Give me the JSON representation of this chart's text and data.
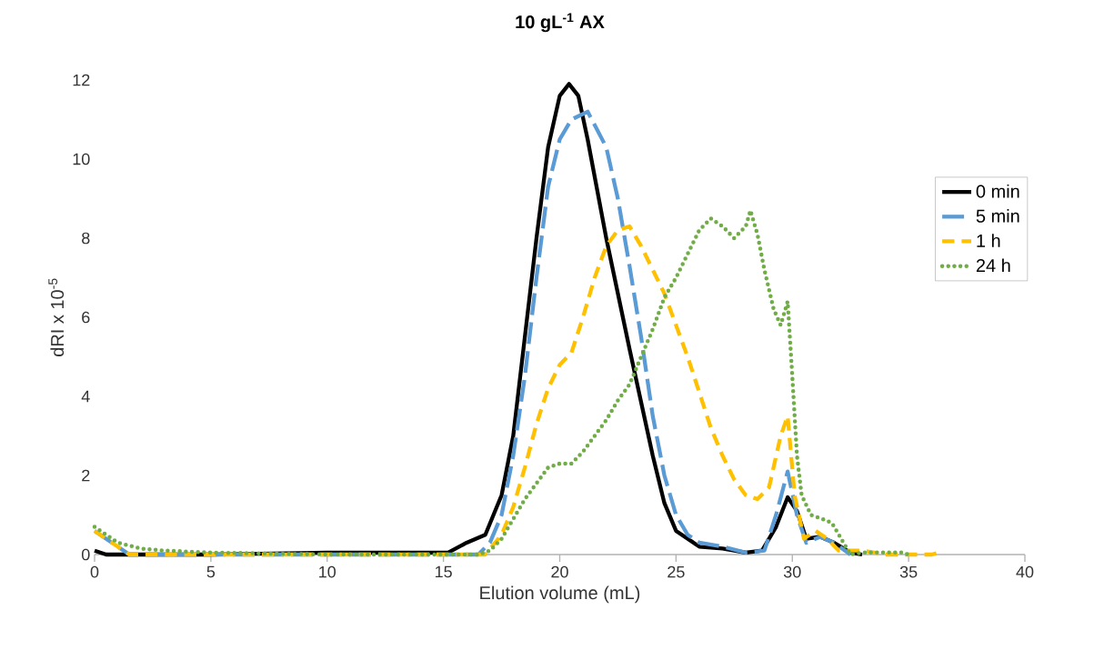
{
  "chart_data": {
    "type": "line",
    "title": "10 gL$^{-1}$ AX",
    "xlabel": "Elution volume (mL)",
    "ylabel": "dRI x 10$^{-5}$",
    "xlim": [
      0,
      40
    ],
    "xticks": [
      0,
      5,
      10,
      15,
      20,
      25,
      30,
      35,
      40
    ],
    "ylim": [
      0,
      12
    ],
    "yticks": [
      0,
      2,
      4,
      6,
      8,
      10,
      12
    ],
    "grid": false,
    "legend": "right",
    "marker": "none",
    "series": [
      {
        "name": "0 min",
        "color": "#000000",
        "line_style": "solid",
        "x": [
          0,
          0.5,
          5,
          10,
          15.2,
          16,
          16.8,
          17.5,
          18,
          18.5,
          19,
          19.5,
          20,
          20.4,
          20.8,
          21.2,
          22,
          23,
          24,
          24.5,
          25,
          26,
          27,
          28,
          28.7,
          29.3,
          29.8,
          30.2,
          30.6,
          31.2,
          31.8,
          32.5,
          33
        ],
        "values": [
          0.1,
          0,
          0,
          0.05,
          0.05,
          0.3,
          0.5,
          1.5,
          3,
          5.5,
          8,
          10.3,
          11.6,
          11.9,
          11.6,
          10.5,
          8,
          5.2,
          2.5,
          1.3,
          0.6,
          0.2,
          0.15,
          0.05,
          0.1,
          0.7,
          1.45,
          1.1,
          0.4,
          0.45,
          0.3,
          0.05,
          0
        ]
      },
      {
        "name": "5 min",
        "color": "#5b9bd5",
        "line_style": "dashed",
        "x": [
          0,
          1.5,
          10,
          16.5,
          17,
          17.5,
          18,
          18.5,
          19,
          19.5,
          20,
          20.5,
          21.2,
          22,
          22.5,
          23,
          23.5,
          24,
          24.5,
          25,
          25.5,
          26,
          27,
          28,
          28.8,
          29.3,
          29.8,
          30.2,
          30.6,
          31.2,
          31.8,
          32.5
        ],
        "values": [
          0.6,
          0,
          0,
          0,
          0.3,
          1,
          2.5,
          4.5,
          7,
          9.3,
          10.5,
          11,
          11.2,
          10.3,
          9,
          7.3,
          5.5,
          3.5,
          2,
          1,
          0.5,
          0.3,
          0.2,
          0.05,
          0.1,
          1,
          2.1,
          1,
          0.3,
          0.45,
          0.3,
          0
        ]
      },
      {
        "name": "1 h",
        "color": "#ffc000",
        "line_style": "dashed",
        "x": [
          0,
          1.5,
          10,
          16.8,
          17.5,
          18,
          18.5,
          19,
          19.5,
          20,
          20.5,
          21,
          21.5,
          22,
          22.5,
          23,
          23.5,
          24,
          24.5,
          25,
          25.5,
          26,
          26.5,
          27,
          27.5,
          28,
          28.5,
          29,
          29.5,
          29.8,
          30.1,
          30.5,
          31,
          31.5,
          32,
          33,
          34,
          36,
          36.3
        ],
        "values": [
          0.6,
          0,
          0,
          0,
          0.5,
          1.2,
          2.2,
          3.3,
          4.2,
          4.8,
          5.1,
          6,
          7,
          7.8,
          8.2,
          8.3,
          7.8,
          7.2,
          6.6,
          5.8,
          5,
          4.1,
          3.2,
          2.5,
          1.9,
          1.5,
          1.4,
          1.7,
          3,
          3.5,
          1.5,
          0.4,
          0.6,
          0.4,
          0.1,
          0.1,
          0,
          0,
          0.05
        ]
      },
      {
        "name": "24 h",
        "color": "#70ad47",
        "line_style": "dotted",
        "x": [
          0,
          1,
          2,
          3,
          5,
          10,
          16.5,
          17,
          17.5,
          18,
          18.5,
          19,
          19.5,
          20,
          20.5,
          21,
          21.5,
          22,
          22.5,
          23,
          23.5,
          24,
          24.5,
          25,
          25.5,
          26,
          26.5,
          27,
          27.5,
          28,
          28.2,
          28.5,
          28.8,
          29.2,
          29.5,
          29.8,
          30,
          30.2,
          30.4,
          30.8,
          31.3,
          31.7,
          32.2,
          32.5,
          33,
          34.7,
          35
        ],
        "values": [
          0.7,
          0.3,
          0.15,
          0.1,
          0.05,
          0,
          0,
          0.1,
          0.4,
          0.9,
          1.4,
          1.8,
          2.2,
          2.3,
          2.3,
          2.6,
          3,
          3.4,
          3.9,
          4.3,
          5,
          5.7,
          6.5,
          7,
          7.6,
          8.2,
          8.5,
          8.3,
          8,
          8.3,
          8.7,
          8.1,
          7.2,
          6.2,
          5.8,
          6.4,
          4.5,
          2.5,
          1.5,
          1,
          0.9,
          0.8,
          0.3,
          0,
          0.05,
          0.05,
          0
        ]
      }
    ]
  }
}
